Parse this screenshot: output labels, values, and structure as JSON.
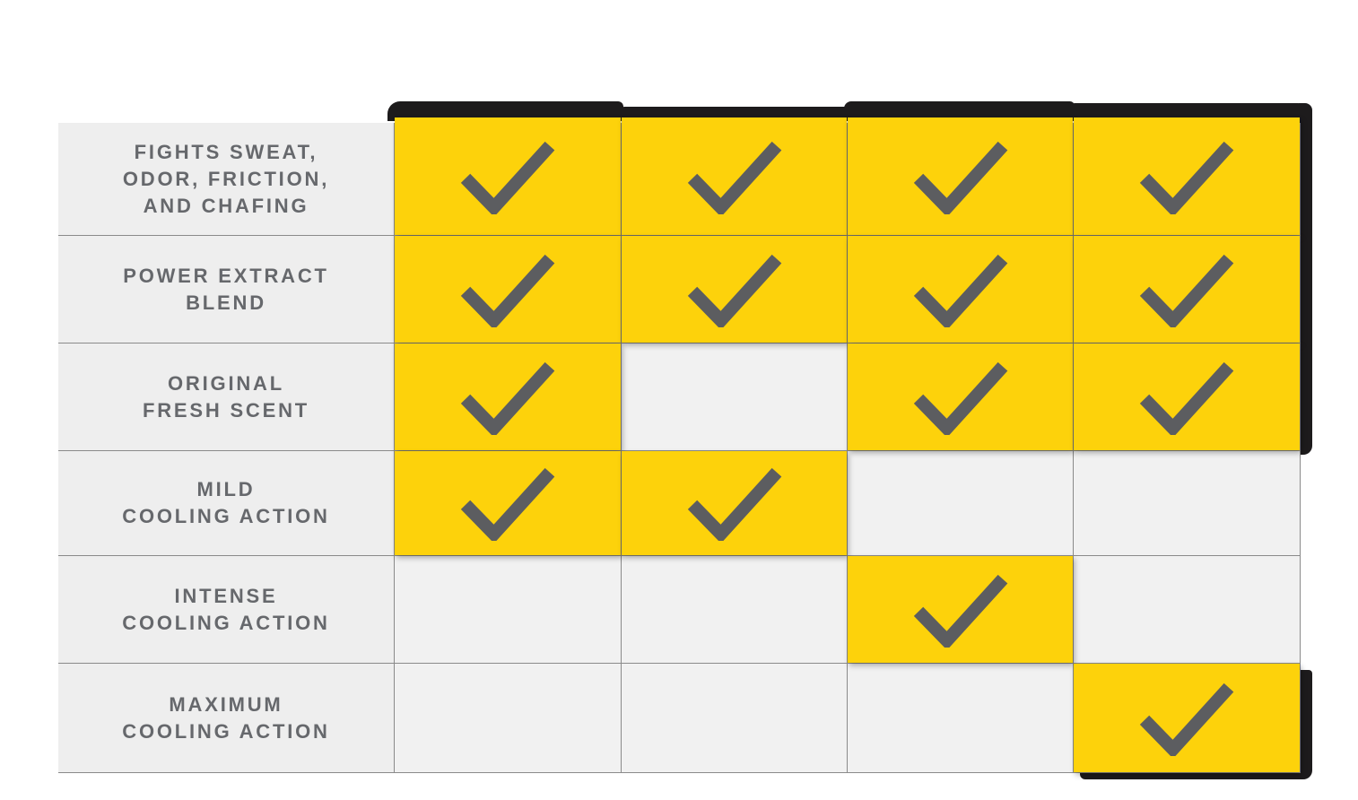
{
  "page": {
    "description": "Product feature comparison matrix with checkmarks",
    "background": "#ffffff"
  },
  "colors": {
    "yellow": "#FDD20B",
    "check": "#5C5D60",
    "label_bg": "#EEEEEE",
    "empty_bg": "#F1F1F1",
    "grid_line": "#8A8A8A",
    "frame": "#1D1B1C",
    "label_text": "#66686C"
  },
  "icons": {
    "check": "checkmark-icon"
  },
  "table": {
    "column_count": 4,
    "rows": [
      {
        "id": "fights-sweat-odor-friction-and-chafing",
        "lines": [
          "FIGHTS SWEAT,",
          "ODOR, FRICTION,",
          "AND CHAFING"
        ],
        "cells": [
          1,
          1,
          1,
          1
        ]
      },
      {
        "id": "power-extract-blend",
        "lines": [
          "POWER EXTRACT",
          "BLEND"
        ],
        "cells": [
          1,
          1,
          1,
          1
        ]
      },
      {
        "id": "original-fresh-scent",
        "lines": [
          "ORIGINAL",
          "FRESH SCENT"
        ],
        "cells": [
          1,
          0,
          1,
          1
        ]
      },
      {
        "id": "mild-cooling-action",
        "lines": [
          "MILD",
          "COOLING ACTION"
        ],
        "cells": [
          1,
          1,
          0,
          0
        ]
      },
      {
        "id": "intense-cooling-action",
        "lines": [
          "INTENSE",
          "COOLING ACTION"
        ],
        "cells": [
          0,
          0,
          1,
          0
        ]
      },
      {
        "id": "maximum-cooling-action",
        "lines": [
          "MAXIMUM",
          "COOLING ACTION"
        ],
        "cells": [
          0,
          0,
          0,
          1
        ]
      }
    ]
  },
  "chart_data": {
    "type": "table",
    "title": "",
    "row_labels": [
      "FIGHTS SWEAT, ODOR, FRICTION, AND CHAFING",
      "POWER EXTRACT BLEND",
      "ORIGINAL FRESH SCENT",
      "MILD COOLING ACTION",
      "INTENSE COOLING ACTION",
      "MAXIMUM COOLING ACTION"
    ],
    "column_count": 4,
    "matrix": [
      [
        1,
        1,
        1,
        1
      ],
      [
        1,
        1,
        1,
        1
      ],
      [
        1,
        0,
        1,
        1
      ],
      [
        1,
        1,
        0,
        0
      ],
      [
        0,
        0,
        1,
        0
      ],
      [
        0,
        0,
        0,
        1
      ]
    ],
    "legend": "1 = yellow cell with gray checkmark (feature present); 0 = empty light-gray cell (feature absent)",
    "layout_hints": "left column holds feature labels; black rounded bar caps the four product columns and runs down the right side of the first three rows; the bottom-right cell has its own black right/bottom frame"
  }
}
